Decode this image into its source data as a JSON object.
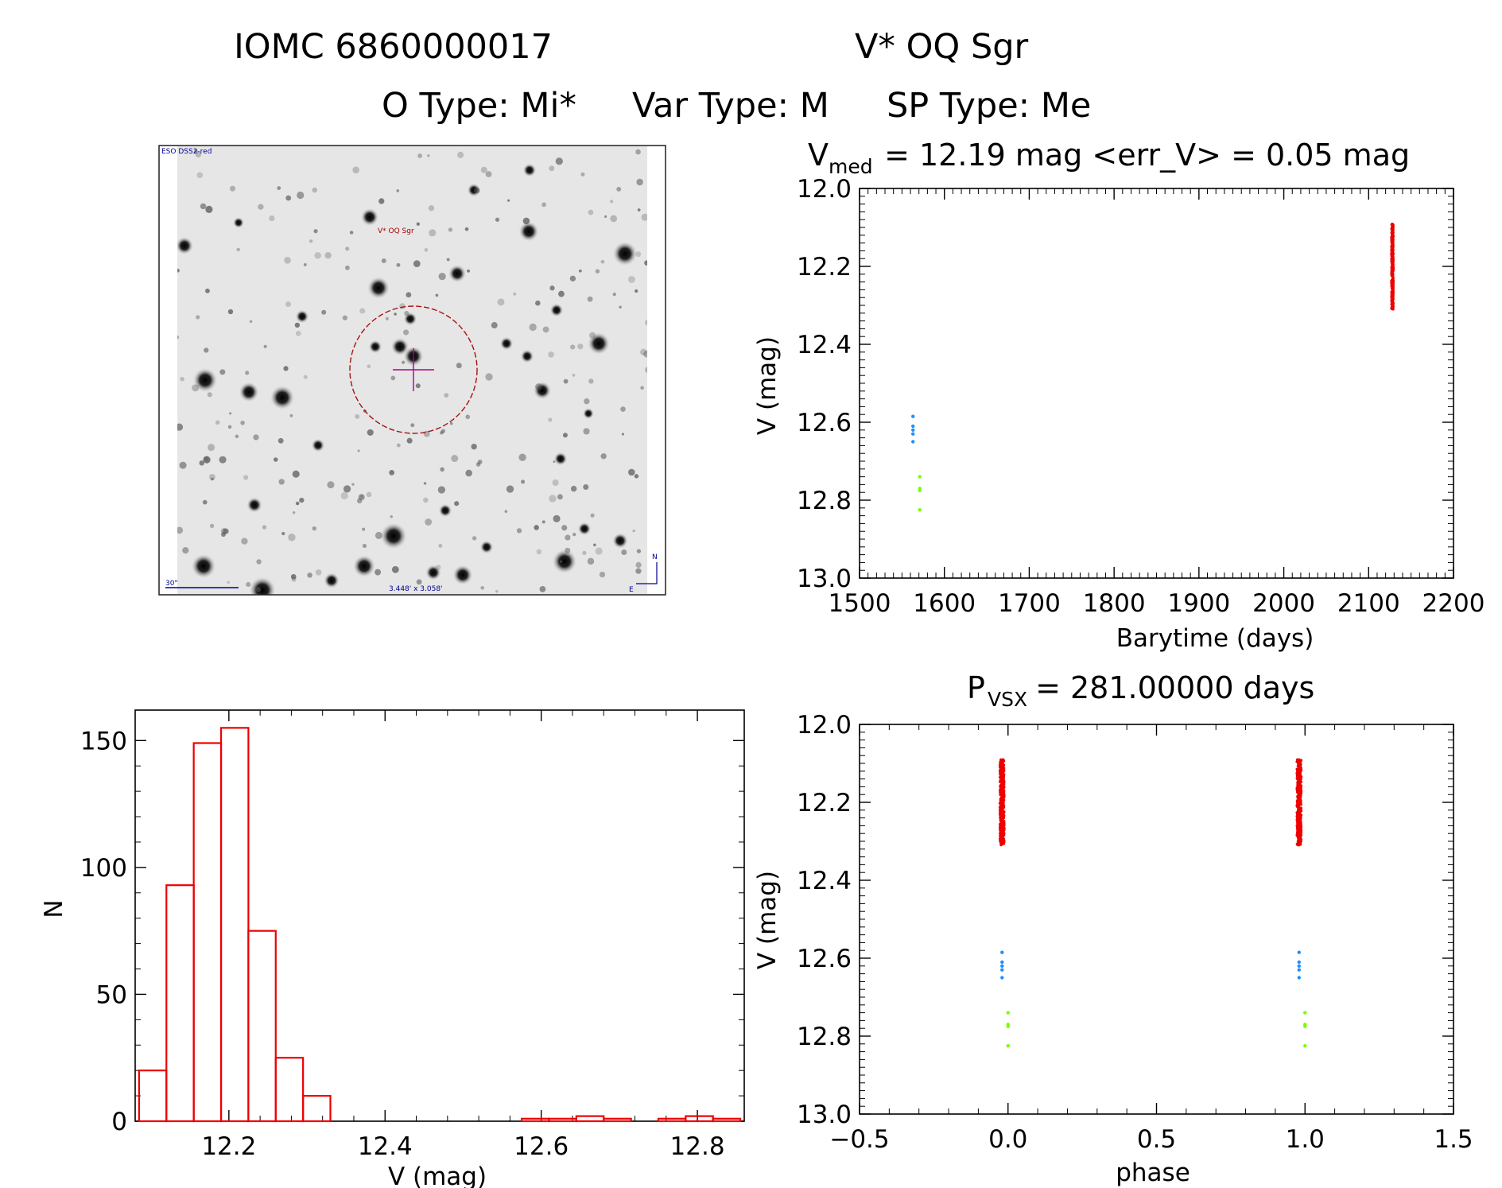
{
  "header": {
    "line1_id": "IOMC 6860000017",
    "line1_name": "V* OQ Sgr",
    "line2_otype": "O Type: Mi*",
    "line2_vartype": "Var Type: M",
    "line2_sptype": "SP Type: Me"
  },
  "image_panel": {
    "survey_label": "ESO DSS2-red",
    "target_label": "V* OQ Sgr",
    "scale_label": "30\"",
    "fov_label": "3.448' x 3.058'",
    "north_label": "N",
    "east_label": "E"
  },
  "colors": {
    "primary": "#ee0000",
    "secondary": "#1e90ff",
    "tertiary": "#7cfc00",
    "marker_circle": "#aa1111",
    "crosshair": "#aa0088",
    "annotation_blue": "#000099"
  },
  "chart_data": [
    {
      "id": "light-curve",
      "type": "scatter",
      "title_prefix": "V",
      "title_sub": "med",
      "title_rest": " = 12.19 mag <err_V> = 0.05 mag",
      "xlabel": "Barytime (days)",
      "ylabel": "V (mag)",
      "xlim": [
        1500,
        2200
      ],
      "ylim": [
        13.0,
        12.0
      ],
      "y_inverted": true,
      "xticks": [
        "1500",
        "1600",
        "1700",
        "1800",
        "1900",
        "2000",
        "2100",
        "2200"
      ],
      "yticks": [
        "12.0",
        "12.2",
        "12.4",
        "12.6",
        "12.8",
        "13.0"
      ],
      "series": [
        {
          "name": "main",
          "color": "#ee0000",
          "x_range": [
            2127,
            2129
          ],
          "y_range": [
            12.09,
            12.31
          ]
        },
        {
          "name": "faint-blue",
          "color": "#1e90ff",
          "points": [
            [
              1563,
              12.585
            ],
            [
              1563,
              12.61
            ],
            [
              1563,
              12.62
            ],
            [
              1563,
              12.63
            ],
            [
              1563,
              12.65
            ]
          ]
        },
        {
          "name": "faint-green",
          "color": "#7cfc00",
          "points": [
            [
              1571,
              12.74
            ],
            [
              1571,
              12.77
            ],
            [
              1571,
              12.775
            ],
            [
              1571,
              12.825
            ]
          ]
        }
      ]
    },
    {
      "id": "histogram",
      "type": "bar",
      "xlabel": "V (mag)",
      "ylabel": "N",
      "xlim": [
        12.08,
        12.86
      ],
      "ylim": [
        0,
        162
      ],
      "xticks": [
        "12.2",
        "12.4",
        "12.6",
        "12.8"
      ],
      "yticks": [
        "0",
        "50",
        "100",
        "150"
      ],
      "bin_width": 0.035,
      "bin_start": 12.085,
      "values": [
        20,
        93,
        149,
        155,
        75,
        25,
        10,
        0,
        0,
        0,
        0,
        0,
        0,
        0,
        1,
        1,
        2,
        1,
        0,
        1,
        2,
        1
      ]
    },
    {
      "id": "phased-curve",
      "type": "scatter",
      "title_prefix": "P",
      "title_sub": "VSX",
      "title_rest": " = 281.00000 days",
      "xlabel": "phase",
      "ylabel": "V (mag)",
      "xlim": [
        -0.5,
        1.5
      ],
      "ylim": [
        13.0,
        12.0
      ],
      "y_inverted": true,
      "xticks": [
        "−0.5",
        "0.0",
        "0.5",
        "1.0",
        "1.5"
      ],
      "yticks": [
        "12.0",
        "12.2",
        "12.4",
        "12.6",
        "12.8",
        "13.0"
      ],
      "series": [
        {
          "name": "main",
          "color": "#ee0000",
          "phases": [
            -0.02,
            0.98
          ],
          "y_range": [
            12.09,
            12.31
          ]
        },
        {
          "name": "faint-blue",
          "color": "#1e90ff",
          "phases": [
            -0.02,
            0.98
          ],
          "y_values": [
            12.585,
            12.61,
            12.62,
            12.63,
            12.65
          ]
        },
        {
          "name": "faint-green",
          "color": "#7cfc00",
          "phases": [
            0.0,
            1.0
          ],
          "y_values": [
            12.74,
            12.77,
            12.775,
            12.825
          ]
        }
      ]
    }
  ]
}
